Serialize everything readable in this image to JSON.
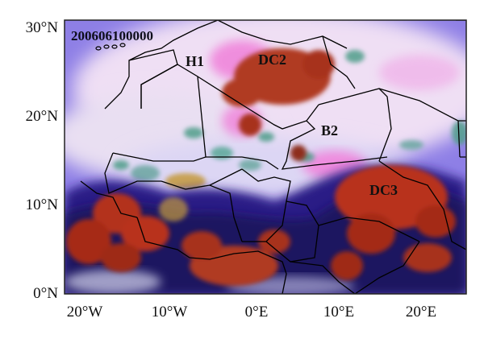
{
  "map": {
    "timestamp": "200606100000",
    "lat_ticks": [
      {
        "value": 30,
        "label": "30°N"
      },
      {
        "value": 20,
        "label": "20°N"
      },
      {
        "value": 10,
        "label": "10°N"
      },
      {
        "value": 0,
        "label": "0°N"
      }
    ],
    "lon_ticks": [
      {
        "value": -20,
        "label": "20°W"
      },
      {
        "value": -10,
        "label": "10°W"
      },
      {
        "value": 0,
        "label": "0°E"
      },
      {
        "value": 10,
        "label": "10°E"
      },
      {
        "value": 20,
        "label": "20°E"
      }
    ],
    "regions": [
      {
        "id": "H1",
        "label": "H1"
      },
      {
        "id": "DC2",
        "label": "DC2"
      },
      {
        "id": "B2",
        "label": "B2"
      },
      {
        "id": "DC3",
        "label": "DC3"
      }
    ],
    "colors": {
      "background_sky": "#8e7fe6",
      "haze": "#eedcf2",
      "dust_pink": "#f07ad8",
      "deep_convection": "#b8311c",
      "cloud_edge": "#241a78",
      "border_lines": "#000000",
      "frame": "#222222"
    }
  }
}
